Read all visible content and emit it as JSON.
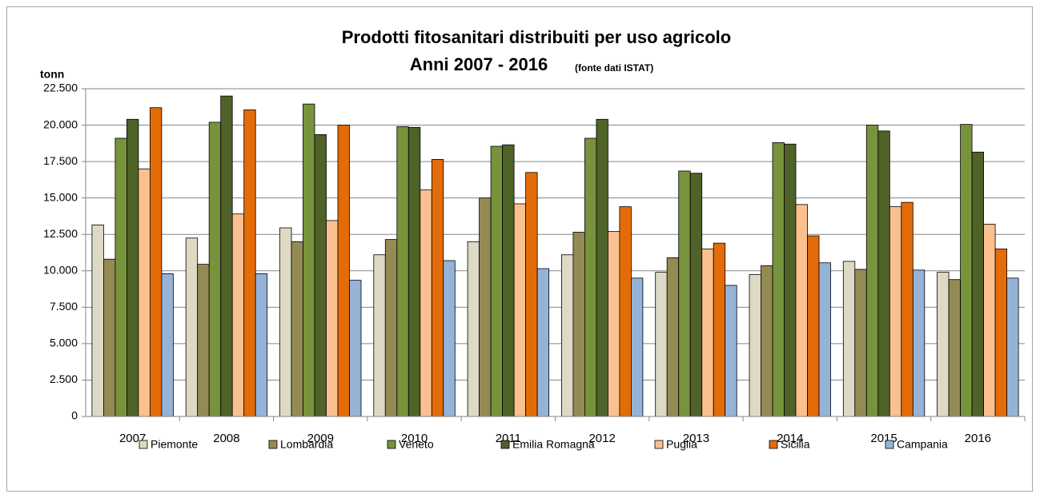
{
  "chart_data": {
    "type": "bar",
    "title": "Prodotti fitosanitari distribuiti per uso agricolo",
    "subtitle": "Anni 2007 - 2016",
    "source": "(fonte dati ISTAT)",
    "ylabel": "tonn",
    "categories": [
      "2007",
      "2008",
      "2009",
      "2010",
      "2011",
      "2012",
      "2013",
      "2014",
      "2015",
      "2016"
    ],
    "series": [
      {
        "name": "Piemonte",
        "color": "#ddd9c4",
        "values": [
          13150,
          12250,
          12950,
          11100,
          12000,
          11100,
          9900,
          9750,
          10650,
          9900
        ]
      },
      {
        "name": "Lombardia",
        "color": "#948a54",
        "values": [
          10800,
          10450,
          12000,
          12150,
          15000,
          12650,
          10900,
          10350,
          10100,
          9400
        ]
      },
      {
        "name": "Veneto",
        "color": "#77933c",
        "values": [
          19100,
          20200,
          21450,
          19900,
          18550,
          19100,
          16850,
          18800,
          20000,
          20050
        ]
      },
      {
        "name": "Emilia Romagna",
        "color": "#4f6228",
        "values": [
          20400,
          22000,
          19350,
          19850,
          18650,
          20400,
          16700,
          18700,
          19600,
          18150
        ]
      },
      {
        "name": "Puglia",
        "color": "#fac090",
        "values": [
          17000,
          13900,
          13450,
          15550,
          14600,
          12700,
          11500,
          14550,
          14400,
          13200
        ]
      },
      {
        "name": "Sicilia",
        "color": "#e36c09",
        "values": [
          21200,
          21050,
          20000,
          17650,
          16750,
          14400,
          11900,
          12400,
          14700,
          11500
        ]
      },
      {
        "name": "Campania",
        "color": "#95b3d7",
        "values": [
          9800,
          9800,
          9350,
          10700,
          10150,
          9500,
          9000,
          10550,
          10050,
          9500
        ]
      }
    ],
    "ylim": [
      0,
      22500
    ],
    "yticks": [
      0,
      {
        "value": 2500,
        "label": "2.500"
      },
      {
        "value": 5000,
        "label": "5.000"
      },
      {
        "value": 7500,
        "label": "7.500"
      },
      {
        "value": 10000,
        "label": "10.000"
      },
      {
        "value": 12500,
        "label": "12.500"
      },
      {
        "value": 15000,
        "label": "15.000"
      },
      {
        "value": 17500,
        "label": "17.500"
      },
      {
        "value": 20000,
        "label": "20.000"
      },
      {
        "value": 22500,
        "label": "22.500"
      }
    ],
    "grid": true,
    "legend": "bottom"
  }
}
